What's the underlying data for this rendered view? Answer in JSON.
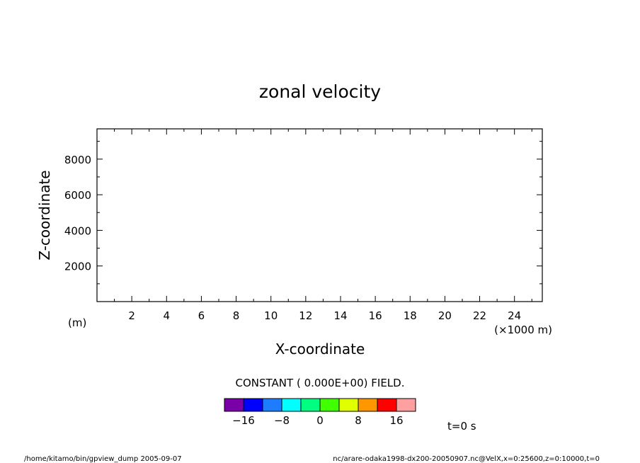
{
  "chart_data": {
    "type": "heatmap",
    "title": "zonal velocity",
    "xlabel": "X-coordinate",
    "ylabel": "Z-coordinate",
    "x_unit": "(×1000 m)",
    "y_unit": "(m)",
    "xlim": [
      0,
      25.6
    ],
    "ylim": [
      0,
      9700
    ],
    "x_ticks": [
      2,
      4,
      6,
      8,
      10,
      12,
      14,
      16,
      18,
      20,
      22,
      24
    ],
    "y_ticks": [
      2000,
      4000,
      6000,
      8000
    ],
    "field_note": "CONSTANT ( 0.000E+00) FIELD.",
    "colorbar": {
      "colors": [
        "#7a00a8",
        "#0000ff",
        "#1e7cff",
        "#00ffff",
        "#00ff80",
        "#40ff00",
        "#e0ff00",
        "#ff9800",
        "#ff0000",
        "#ffa0a0"
      ],
      "tick_labels": [
        "−16",
        "−8",
        "0",
        "8",
        "16"
      ]
    },
    "time_label": "t=0 s"
  },
  "footer": {
    "left": "/home/kitamo/bin/gpview_dump  2005-09-07",
    "right": "nc/arare-odaka1998-dx200-20050907.nc@VelX,x=0:25600,z=0:10000,t=0"
  }
}
